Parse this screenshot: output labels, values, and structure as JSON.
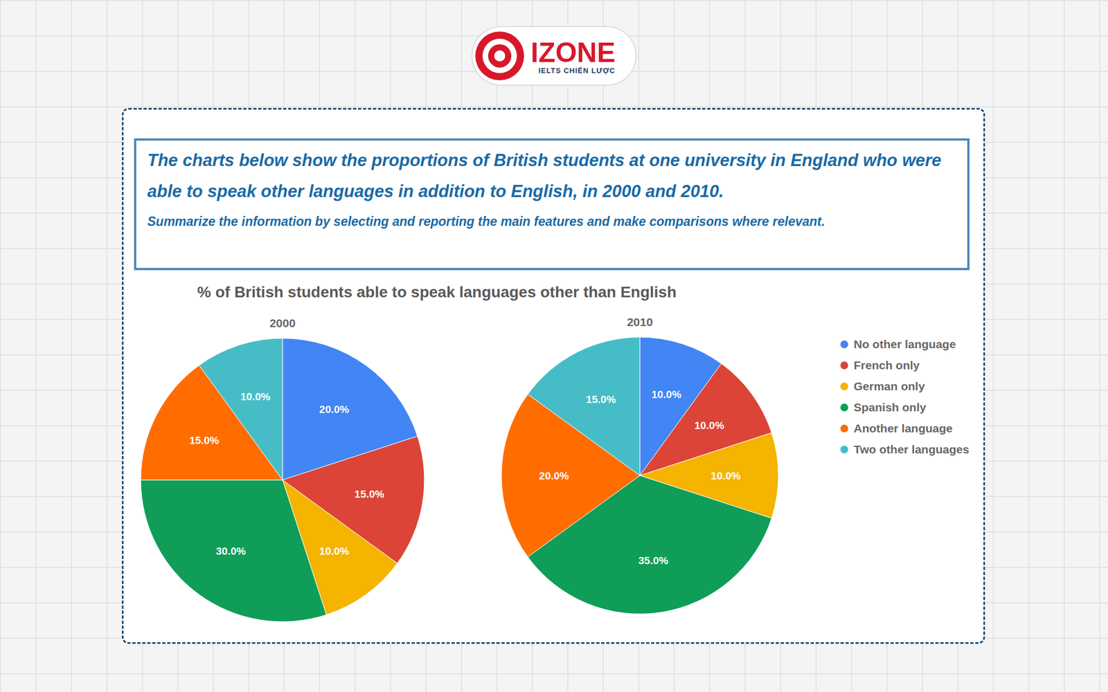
{
  "header": {
    "logo_text": "IZONE",
    "logo_tagline": "IELTS CHIẾN LƯỢC"
  },
  "task": {
    "prompt": "The charts below show the proportions of British students at one university in England who were able to speak other languages in addition to English, in 2000 and 2010.",
    "instruction": "Summarize the information by selecting and reporting the main features and make comparisons where relevant."
  },
  "figure_title": "% of British students able to speak languages other than English",
  "chart_data": [
    {
      "type": "pie",
      "title": "2000",
      "categories": [
        "No other language",
        "French only",
        "German only",
        "Spanish only",
        "Another language",
        "Two other languages"
      ],
      "values": [
        20,
        15,
        10,
        30,
        15,
        10
      ],
      "value_labels": [
        "20.0%",
        "15.0%",
        "10.0%",
        "30.0%",
        "15.0%",
        "10.0%"
      ],
      "colors": [
        "#4285f4",
        "#db4437",
        "#f4b400",
        "#0f9d58",
        "#ff6d01",
        "#46bdc6"
      ],
      "data_labels": true,
      "legend": "right"
    },
    {
      "type": "pie",
      "title": "2010",
      "categories": [
        "No other language",
        "French only",
        "German only",
        "Spanish only",
        "Another language",
        "Two other languages"
      ],
      "values": [
        10,
        10,
        10,
        35,
        20,
        15
      ],
      "value_labels": [
        "10.0%",
        "10.0%",
        "10.0%",
        "35.0%",
        "20.0%",
        "15.0%"
      ],
      "colors": [
        "#4285f4",
        "#db4437",
        "#f4b400",
        "#0f9d58",
        "#ff6d01",
        "#46bdc6"
      ],
      "data_labels": true,
      "legend": "right"
    }
  ]
}
